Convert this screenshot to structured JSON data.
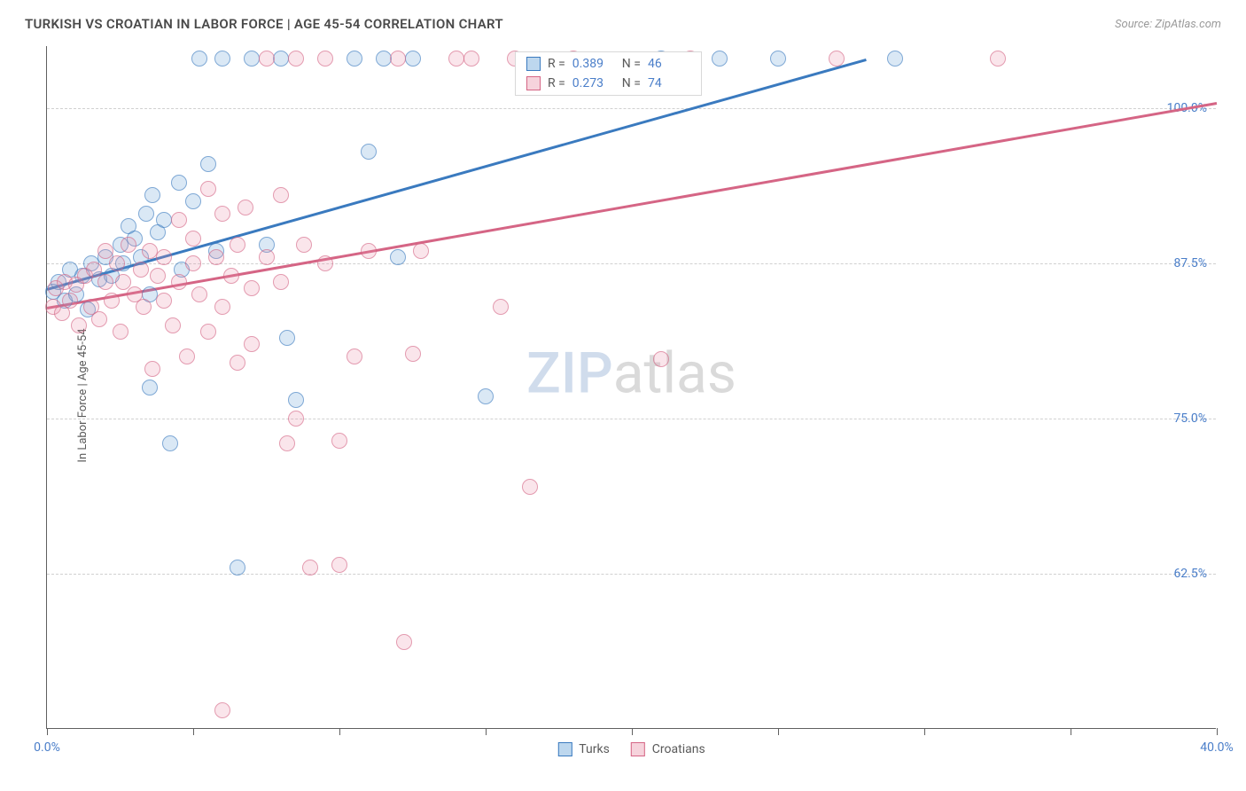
{
  "title": "TURKISH VS CROATIAN IN LABOR FORCE | AGE 45-54 CORRELATION CHART",
  "source": "Source: ZipAtlas.com",
  "y_axis_label": "In Labor Force | Age 45-54",
  "watermark_a": "ZIP",
  "watermark_b": "atlas",
  "chart": {
    "type": "scatter",
    "background_color": "#ffffff",
    "grid_color": "#d0d0d0",
    "axis_color": "#606060",
    "xlim": [
      0,
      40
    ],
    "ylim": [
      50,
      105
    ],
    "x_tick_positions": [
      0,
      5,
      10,
      15,
      20,
      25,
      30,
      35,
      40
    ],
    "x_tick_labels": {
      "0": "0.0%",
      "40": "40.0%"
    },
    "y_gridlines": [
      62.5,
      75,
      87.5,
      100
    ],
    "y_tick_labels": {
      "62.5": "62.5%",
      "75": "75.0%",
      "87.5": "87.5%",
      "100": "100.0%"
    },
    "marker_radius": 9,
    "marker_fill_opacity": 0.35,
    "marker_stroke_width": 1.5,
    "line_width": 2.5,
    "series": [
      {
        "name": "Turks",
        "color": "#5b9bd5",
        "stroke": "#3a7abf",
        "r_value": "0.389",
        "n_value": "46",
        "trend": {
          "x1": 0,
          "y1": 85.5,
          "x2": 28,
          "y2": 104
        },
        "points": [
          [
            0.2,
            85.2
          ],
          [
            0.4,
            86.0
          ],
          [
            0.6,
            84.5
          ],
          [
            0.8,
            87.0
          ],
          [
            1.0,
            85.0
          ],
          [
            1.2,
            86.5
          ],
          [
            1.4,
            83.8
          ],
          [
            1.5,
            87.5
          ],
          [
            1.8,
            86.2
          ],
          [
            2.0,
            88.0
          ],
          [
            2.2,
            86.5
          ],
          [
            2.5,
            89.0
          ],
          [
            2.6,
            87.5
          ],
          [
            2.8,
            90.5
          ],
          [
            3.0,
            89.5
          ],
          [
            3.2,
            88.0
          ],
          [
            3.4,
            91.5
          ],
          [
            3.5,
            85.0
          ],
          [
            3.5,
            77.5
          ],
          [
            3.6,
            93.0
          ],
          [
            3.8,
            90.0
          ],
          [
            4.0,
            91.0
          ],
          [
            4.2,
            73.0
          ],
          [
            4.5,
            94.0
          ],
          [
            4.6,
            87.0
          ],
          [
            5.0,
            92.5
          ],
          [
            5.2,
            104
          ],
          [
            5.5,
            95.5
          ],
          [
            5.8,
            88.5
          ],
          [
            6.0,
            104
          ],
          [
            6.5,
            63.0
          ],
          [
            7.0,
            104
          ],
          [
            7.5,
            89.0
          ],
          [
            8.0,
            104
          ],
          [
            8.2,
            81.5
          ],
          [
            8.5,
            76.5
          ],
          [
            10.5,
            104
          ],
          [
            11.0,
            96.5
          ],
          [
            11.5,
            104
          ],
          [
            12.0,
            88.0
          ],
          [
            12.5,
            104
          ],
          [
            15.0,
            76.8
          ],
          [
            21.0,
            104
          ],
          [
            23.0,
            104
          ],
          [
            25.0,
            104
          ],
          [
            29.0,
            104
          ]
        ]
      },
      {
        "name": "Croatians",
        "color": "#e890a8",
        "stroke": "#d56585",
        "r_value": "0.273",
        "n_value": "74",
        "trend": {
          "x1": 0,
          "y1": 84.0,
          "x2": 40,
          "y2": 100.5
        },
        "points": [
          [
            0.2,
            84.0
          ],
          [
            0.3,
            85.5
          ],
          [
            0.5,
            83.5
          ],
          [
            0.6,
            86.0
          ],
          [
            0.8,
            84.5
          ],
          [
            1.0,
            85.8
          ],
          [
            1.1,
            82.5
          ],
          [
            1.3,
            86.5
          ],
          [
            1.5,
            84.0
          ],
          [
            1.6,
            87.0
          ],
          [
            1.8,
            83.0
          ],
          [
            2.0,
            86.0
          ],
          [
            2.0,
            88.5
          ],
          [
            2.2,
            84.5
          ],
          [
            2.4,
            87.5
          ],
          [
            2.5,
            82.0
          ],
          [
            2.6,
            86.0
          ],
          [
            2.8,
            89.0
          ],
          [
            3.0,
            85.0
          ],
          [
            3.2,
            87.0
          ],
          [
            3.3,
            84.0
          ],
          [
            3.5,
            88.5
          ],
          [
            3.6,
            79.0
          ],
          [
            3.8,
            86.5
          ],
          [
            4.0,
            84.5
          ],
          [
            4.0,
            88.0
          ],
          [
            4.3,
            82.5
          ],
          [
            4.5,
            91.0
          ],
          [
            4.5,
            86.0
          ],
          [
            4.8,
            80.0
          ],
          [
            5.0,
            87.5
          ],
          [
            5.0,
            89.5
          ],
          [
            5.2,
            85.0
          ],
          [
            5.5,
            82.0
          ],
          [
            5.5,
            93.5
          ],
          [
            5.8,
            88.0
          ],
          [
            6.0,
            84.0
          ],
          [
            6.0,
            91.5
          ],
          [
            6.0,
            51.5
          ],
          [
            6.3,
            86.5
          ],
          [
            6.5,
            89.0
          ],
          [
            6.5,
            79.5
          ],
          [
            6.8,
            92.0
          ],
          [
            7.0,
            85.5
          ],
          [
            7.0,
            81.0
          ],
          [
            7.5,
            104
          ],
          [
            7.5,
            88.0
          ],
          [
            8.0,
            93.0
          ],
          [
            8.0,
            86.0
          ],
          [
            8.2,
            73.0
          ],
          [
            8.5,
            104
          ],
          [
            8.5,
            75.0
          ],
          [
            8.8,
            89.0
          ],
          [
            9.0,
            63.0
          ],
          [
            9.5,
            87.5
          ],
          [
            9.5,
            104
          ],
          [
            10.0,
            73.2
          ],
          [
            10.0,
            63.2
          ],
          [
            10.5,
            80.0
          ],
          [
            11.0,
            88.5
          ],
          [
            12.0,
            104
          ],
          [
            12.2,
            57.0
          ],
          [
            12.5,
            80.2
          ],
          [
            12.8,
            88.5
          ],
          [
            14.0,
            104
          ],
          [
            14.5,
            104
          ],
          [
            15.5,
            84.0
          ],
          [
            16.0,
            104
          ],
          [
            16.5,
            69.5
          ],
          [
            18.0,
            104
          ],
          [
            21.0,
            79.8
          ],
          [
            22.0,
            104
          ],
          [
            27.0,
            104
          ],
          [
            32.5,
            104
          ]
        ]
      }
    ],
    "legend": [
      {
        "label": "Turks",
        "color": "#5b9bd5",
        "stroke": "#3a7abf"
      },
      {
        "label": "Croatians",
        "color": "#e890a8",
        "stroke": "#d56585"
      }
    ]
  }
}
